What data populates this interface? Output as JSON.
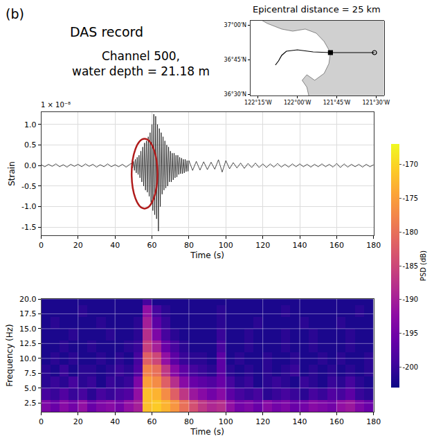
{
  "panel_label": "(b)",
  "header": "DAS record",
  "chart_data": [
    {
      "type": "line",
      "title": [
        "Channel 500,",
        "water depth = 21.18 m"
      ],
      "multiplier": "1 × 10⁻⁸",
      "xlabel": "Time (s)",
      "ylabel": "Strain",
      "color": "#000000",
      "x": [
        0,
        2,
        4,
        6,
        8,
        10,
        12,
        14,
        16,
        18,
        20,
        22,
        24,
        26,
        28,
        30,
        32,
        34,
        36,
        38,
        40,
        42,
        44,
        46,
        48,
        49,
        49.5,
        50,
        50.5,
        51,
        51.5,
        52,
        52.5,
        53,
        53.5,
        54,
        54.5,
        55,
        55.5,
        56,
        56.5,
        57,
        57.5,
        58,
        58.5,
        59,
        59.5,
        60,
        60.5,
        61,
        61.5,
        62,
        62.5,
        63,
        63.5,
        64,
        64.5,
        65,
        65.5,
        66,
        66.5,
        67,
        67.5,
        68,
        68.5,
        69,
        69.5,
        70,
        70.5,
        71,
        71.5,
        72,
        72.5,
        73,
        73.5,
        74,
        74.5,
        75,
        75.5,
        76,
        76.5,
        77,
        77.5,
        78,
        78.5,
        79,
        79.5,
        80,
        82,
        84,
        86,
        88,
        90,
        92,
        94,
        96,
        98,
        100,
        102,
        104,
        106,
        108,
        110,
        112,
        114,
        116,
        118,
        120,
        122,
        124,
        126,
        128,
        130,
        132,
        134,
        136,
        138,
        140,
        142,
        144,
        146,
        148,
        150,
        152,
        154,
        156,
        158,
        160,
        162,
        164,
        166,
        168,
        170,
        172,
        174,
        176,
        178,
        180
      ],
      "values": [
        0.02,
        -0.03,
        0.03,
        -0.02,
        0.04,
        -0.03,
        0.02,
        -0.04,
        0.03,
        -0.02,
        0.03,
        -0.03,
        0.04,
        -0.02,
        0.03,
        -0.04,
        0.02,
        -0.03,
        0.04,
        -0.03,
        0.02,
        -0.03,
        0.03,
        -0.04,
        0.03,
        0.05,
        -0.06,
        0.1,
        -0.12,
        0.15,
        -0.18,
        0.2,
        -0.22,
        0.25,
        -0.3,
        0.35,
        -0.4,
        0.45,
        -0.5,
        0.55,
        -0.6,
        0.6,
        -0.65,
        0.7,
        -0.75,
        0.8,
        -0.9,
        1.0,
        -1.1,
        1.25,
        -1.2,
        1.2,
        -1.3,
        1.0,
        -1.6,
        0.9,
        -1.0,
        0.8,
        -0.7,
        0.7,
        -0.6,
        0.6,
        -0.55,
        0.5,
        -0.5,
        0.45,
        -0.4,
        0.35,
        -0.4,
        0.3,
        -0.35,
        0.3,
        -0.3,
        0.25,
        -0.28,
        0.25,
        -0.22,
        0.2,
        -0.2,
        0.18,
        -0.2,
        0.15,
        -0.18,
        0.15,
        -0.15,
        0.12,
        -0.14,
        0.12,
        -0.12,
        0.1,
        -0.11,
        0.09,
        -0.1,
        0.08,
        -0.09,
        0.14,
        -0.16,
        0.12,
        -0.08,
        0.07,
        -0.06,
        0.06,
        -0.07,
        0.05,
        -0.05,
        0.06,
        -0.05,
        0.04,
        -0.05,
        0.04,
        -0.04,
        0.05,
        -0.04,
        0.03,
        -0.04,
        0.04,
        -0.03,
        0.04,
        -0.03,
        0.03,
        -0.04,
        0.03,
        -0.03,
        0.04,
        -0.03,
        0.03,
        -0.04,
        0.05,
        -0.05,
        0.04,
        -0.04,
        0.03,
        -0.03,
        0.03,
        -0.04,
        0.03,
        -0.03,
        0.02
      ],
      "xlim": [
        0,
        180
      ],
      "ylim": [
        -1.7,
        1.3
      ],
      "xticks": [
        0,
        20,
        40,
        60,
        80,
        100,
        120,
        140,
        160,
        180
      ],
      "yticks": [
        -1.5,
        {
          "value": -1,
          "label": "-1.0"
        },
        -0.5,
        {
          "value": 0,
          "label": "0.0"
        },
        0.5,
        {
          "value": 1,
          "label": "1.0"
        }
      ],
      "grid": true,
      "highlight": {
        "x": [
          49,
          63
        ],
        "y": [
          -1.05,
          0.65
        ],
        "color": "#b01c1c"
      }
    },
    {
      "type": "heatmap",
      "xlabel": "Time (s)",
      "ylabel": "Frequency (Hz)",
      "x": [
        2.5,
        7.5,
        12.5,
        17.5,
        22.5,
        27.5,
        32.5,
        37.5,
        42.5,
        47.5,
        52.5,
        57.5,
        62.5,
        67.5,
        72.5,
        77.5,
        82.5,
        87.5,
        92.5,
        97.5,
        102.5,
        107.5,
        112.5,
        117.5,
        122.5,
        127.5,
        132.5,
        137.5,
        142.5,
        147.5,
        152.5,
        157.5,
        162.5,
        167.5,
        172.5,
        177.5
      ],
      "y": [
        2,
        4,
        6,
        8,
        10,
        12,
        14,
        16,
        18,
        20
      ],
      "z": [
        [
          -194,
          -196,
          -193,
          -195,
          -192,
          -196,
          -194,
          -193,
          -195,
          -192,
          -190,
          -172,
          -171,
          -173,
          -176,
          -180,
          -184,
          -187,
          -189,
          -188,
          -192,
          -195,
          -194,
          -196,
          -193,
          -195,
          -194,
          -196,
          -195,
          -193,
          -194,
          -195,
          -192,
          -191,
          -194,
          -196
        ],
        [
          -199,
          -200,
          -198,
          -200,
          -199,
          -201,
          -199,
          -200,
          -199,
          -198,
          -192,
          -172,
          -173,
          -177,
          -182,
          -187,
          -191,
          -193,
          -195,
          -193,
          -197,
          -199,
          -200,
          -199,
          -201,
          -200,
          -199,
          -200,
          -201,
          -199,
          -200,
          -198,
          -199,
          -197,
          -200,
          -201
        ],
        [
          -201,
          -200,
          -201,
          -199,
          -201,
          -200,
          -202,
          -200,
          -201,
          -200,
          -194,
          -175,
          -177,
          -182,
          -188,
          -193,
          -196,
          -197,
          -198,
          -196,
          -199,
          -201,
          -200,
          -202,
          -201,
          -200,
          -201,
          -202,
          -200,
          -201,
          -202,
          -200,
          -201,
          -199,
          -201,
          -202
        ],
        [
          -201,
          -202,
          -200,
          -202,
          -201,
          -201,
          -202,
          -201,
          -200,
          -201,
          -198,
          -178,
          -180,
          -187,
          -193,
          -197,
          -199,
          -200,
          -201,
          -197,
          -201,
          -202,
          -201,
          -202,
          -201,
          -202,
          -201,
          -200,
          -202,
          -201,
          -202,
          -201,
          -202,
          -201,
          -202,
          -201
        ],
        [
          -202,
          -201,
          -202,
          -201,
          -202,
          -202,
          -201,
          -202,
          -201,
          -202,
          -199,
          -182,
          -185,
          -192,
          -197,
          -200,
          -201,
          -201,
          -202,
          -197,
          -202,
          -201,
          -202,
          -202,
          -201,
          -202,
          -202,
          -201,
          -202,
          -202,
          -201,
          -202,
          -201,
          -202,
          -202,
          -201
        ],
        [
          -202,
          -202,
          -201,
          -202,
          -202,
          -201,
          -202,
          -202,
          -202,
          -201,
          -200,
          -186,
          -190,
          -196,
          -199,
          -201,
          -202,
          -202,
          -202,
          -199,
          -202,
          -202,
          -201,
          -202,
          -202,
          -202,
          -201,
          -202,
          -202,
          -201,
          -202,
          -202,
          -202,
          -201,
          -202,
          -202
        ],
        [
          -202,
          -202,
          -202,
          -201,
          -202,
          -202,
          -202,
          -201,
          -202,
          -202,
          -201,
          -188,
          -194,
          -199,
          -201,
          -202,
          -202,
          -202,
          -202,
          -200,
          -202,
          -202,
          -201,
          -202,
          -202,
          -202,
          -201,
          -202,
          -202,
          -201,
          -202,
          -202,
          -202,
          -201,
          -202,
          -202
        ],
        [
          -202,
          -201,
          -202,
          -202,
          -202,
          -202,
          -201,
          -202,
          -202,
          -202,
          -201,
          -190,
          -197,
          -200,
          -202,
          -202,
          -202,
          -202,
          -202,
          -201,
          -202,
          -202,
          -202,
          -201,
          -202,
          -202,
          -202,
          -202,
          -201,
          -202,
          -202,
          -202,
          -201,
          -202,
          -202,
          -202
        ],
        [
          -202,
          -202,
          -202,
          -202,
          -201,
          -202,
          -202,
          -202,
          -202,
          -202,
          -202,
          -192,
          -199,
          -201,
          -202,
          -202,
          -202,
          -202,
          -202,
          -201,
          -202,
          -202,
          -202,
          -202,
          -202,
          -202,
          -201,
          -202,
          -202,
          -202,
          -202,
          -202,
          -202,
          -202,
          -201,
          -202
        ],
        [
          -202,
          -202,
          -202,
          -202,
          -202,
          -202,
          -202,
          -202,
          -202,
          -202,
          -202,
          -199,
          -202,
          -202,
          -202,
          -202,
          -202,
          -202,
          -202,
          -202,
          -202,
          -202,
          -202,
          -202,
          -202,
          -202,
          -202,
          -202,
          -202,
          -202,
          -202,
          -202,
          -202,
          -202,
          -202,
          -202
        ]
      ],
      "xlim": [
        0,
        180
      ],
      "ylim": [
        1,
        20
      ],
      "xticks": [
        0,
        20,
        40,
        60,
        80,
        100,
        120,
        140,
        160,
        180
      ],
      "yticks": [
        2.5,
        {
          "value": 5,
          "label": "5.0"
        },
        7.5,
        {
          "value": 10,
          "label": "10.0"
        },
        12.5,
        {
          "value": 15,
          "label": "15.0"
        },
        17.5,
        {
          "value": 20,
          "label": "20.0"
        }
      ],
      "grid": true,
      "colorbar": {
        "title": "PSD (dB)",
        "range": [
          -203,
          -167
        ],
        "ticks": [
          -200,
          -195,
          -190,
          -185,
          -180,
          -175,
          -170
        ]
      }
    },
    {
      "type": "map",
      "title": "Epicentral distance = 25 km",
      "xlim": [
        -122.3,
        -121.45
      ],
      "ylim": [
        36.49,
        37.03
      ],
      "xticks": [
        {
          "value": -122.25,
          "label": "122°15'W"
        },
        {
          "value": -122.0,
          "label": "122°00'W"
        },
        {
          "value": -121.75,
          "label": "121°45'W"
        },
        {
          "value": -121.5,
          "label": "121°30'W"
        }
      ],
      "yticks": [
        {
          "value": 36.5,
          "label": "36°30'N"
        },
        {
          "value": 36.75,
          "label": "36°45'N"
        },
        {
          "value": 37.0,
          "label": "37°00'N"
        }
      ],
      "land": {
        "color": "#d0d0d0",
        "lon": [
          -122.3,
          -122.19,
          -122.1,
          -122.03,
          -121.95,
          -121.88,
          -121.83,
          -121.79,
          -121.8,
          -121.83,
          -121.89,
          -121.94,
          -121.97,
          -121.94,
          -121.93,
          -121.92,
          -121.4,
          -121.4
        ],
        "lat": [
          37.08,
          37.01,
          36.97,
          36.955,
          36.97,
          36.94,
          36.88,
          36.8,
          36.72,
          36.65,
          36.6,
          36.64,
          36.6,
          36.55,
          36.5,
          36.45,
          36.45,
          37.08
        ]
      },
      "cable": {
        "color": "#000000",
        "lon": [
          -121.79,
          -121.9,
          -122.0,
          -122.07,
          -122.1,
          -122.12,
          -122.14
        ],
        "lat": [
          36.8,
          36.805,
          36.82,
          36.81,
          36.78,
          36.74,
          36.71
        ]
      },
      "station": {
        "lon": -121.79,
        "lat": 36.8,
        "marker": "square",
        "color": "#000000"
      },
      "epicenter": {
        "lon": -121.51,
        "lat": 36.8,
        "marker": "circle-open",
        "color": "#000000"
      }
    }
  ]
}
